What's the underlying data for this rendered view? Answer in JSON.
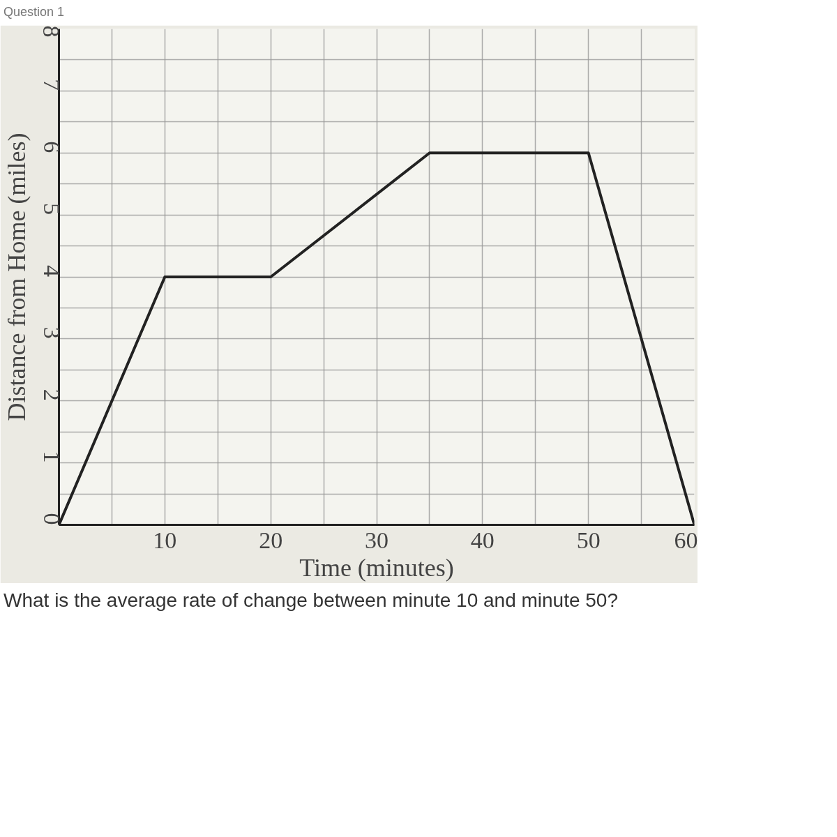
{
  "chart_data": {
    "type": "line",
    "xlabel": "Time (minutes)",
    "ylabel": "Distance from Home (miles)",
    "x": [
      0,
      10,
      20,
      35,
      50,
      60
    ],
    "series": [
      {
        "color": "#222222",
        "values": [
          0,
          4,
          4,
          6,
          6,
          0
        ]
      }
    ],
    "xlim": [
      0,
      60
    ],
    "ylim": [
      0,
      8
    ],
    "xticks": [
      {
        "value": 0,
        "label": null
      },
      {
        "value": 5,
        "label": null
      },
      10,
      {
        "value": 15,
        "label": null
      },
      20,
      {
        "value": 25,
        "label": null
      },
      30,
      {
        "value": 35,
        "label": null
      },
      40,
      {
        "value": 45,
        "label": null
      },
      50,
      {
        "value": 55,
        "label": null
      },
      60
    ],
    "yticks": [
      0,
      {
        "value": 0.5,
        "label": null
      },
      1,
      {
        "value": 1.5,
        "label": null
      },
      2,
      {
        "value": 2.5,
        "label": null
      },
      3,
      {
        "value": 3.5,
        "label": null
      },
      4,
      {
        "value": 4.5,
        "label": null
      },
      5,
      {
        "value": 5.5,
        "label": null
      },
      6,
      {
        "value": 6.5,
        "label": null
      },
      7,
      {
        "value": 7.5,
        "label": null
      },
      8
    ],
    "grid": true,
    "marker": "none",
    "line_style": "solid",
    "annotations": [
      "Question 1",
      "What is the average rate of change between minute 10 and minute 50?"
    ]
  }
}
